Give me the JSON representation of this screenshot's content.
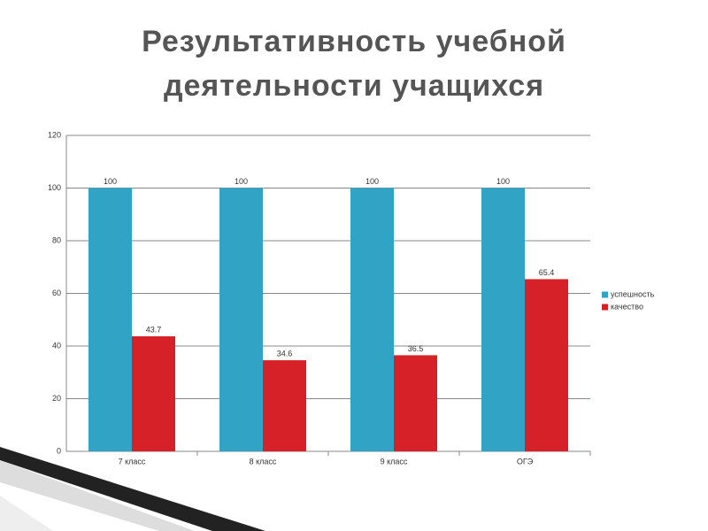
{
  "chart_data": {
    "type": "bar",
    "title": "Результативность учебной деятельности учащихся",
    "categories": [
      "7 класс",
      "8 класс",
      "9 класс",
      "ОГЭ"
    ],
    "series": [
      {
        "name": "успешность",
        "color": "#31a3c4",
        "values": [
          100,
          100,
          100,
          100
        ]
      },
      {
        "name": "качество",
        "color": "#d62128",
        "values": [
          43.7,
          34.6,
          36.5,
          65.4
        ]
      }
    ],
    "ylim": [
      0,
      120
    ],
    "yticks": [
      0,
      20,
      40,
      60,
      80,
      100,
      120
    ],
    "grid": true,
    "legend": "right"
  }
}
